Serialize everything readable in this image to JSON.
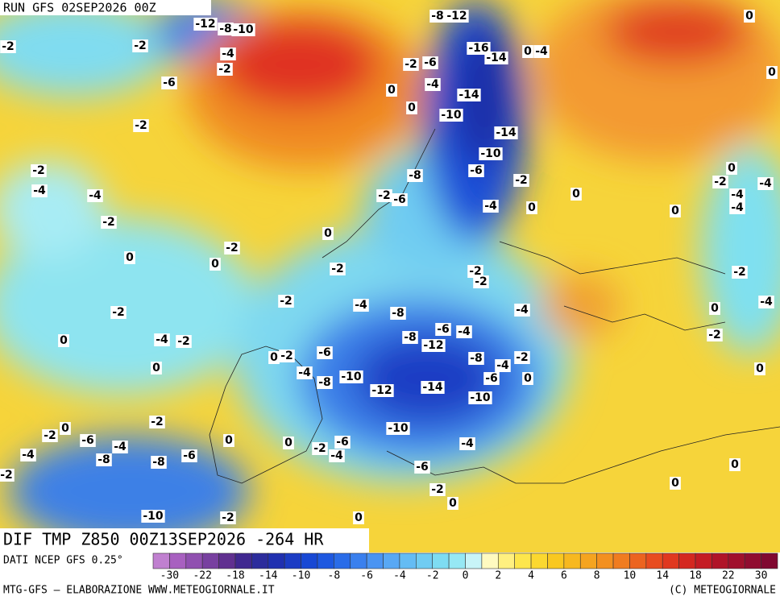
{
  "header": {
    "run": "RUN GFS 02SEP2026 00Z"
  },
  "title": "DIF TMP Z850 00Z13SEP2026 -264 HR",
  "source": "DATI NCEP GFS 0.25°",
  "credit_left": "MTG-GFS — ELABORAZIONE WWW.METEOGIORNALE.IT",
  "credit_right": "(C) METEOGIORNALE",
  "colorbar": {
    "colors": [
      "#c080d0",
      "#a860c0",
      "#9050b0",
      "#7840a0",
      "#603090",
      "#402890",
      "#2c2c9c",
      "#2030b0",
      "#1c3cc4",
      "#1848d4",
      "#1e58e0",
      "#2a6ce8",
      "#3a80ee",
      "#4a94f2",
      "#58a8f4",
      "#64bcf4",
      "#70ccf2",
      "#7edcf2",
      "#96e8f4",
      "#c8f4f8",
      "#fffac0",
      "#fff080",
      "#fde64c",
      "#fbd830",
      "#f9c820",
      "#f7b820",
      "#f5a420",
      "#f39020",
      "#f07c20",
      "#ec6420",
      "#e84c20",
      "#e03820",
      "#d42820",
      "#c41c24",
      "#b01428",
      "#a0102c",
      "#900c30",
      "#800830"
    ],
    "ticks": [
      -30,
      -22,
      -18,
      -14,
      -10,
      -8,
      -6,
      -4,
      -2,
      0,
      2,
      4,
      6,
      8,
      10,
      14,
      18,
      22,
      30
    ]
  },
  "map": {
    "labels": [
      "-12",
      "-8",
      "-10",
      "-8",
      "-12",
      "0",
      "-2",
      "-2",
      "-4",
      "-2",
      "-16",
      "-14",
      "0",
      "-4",
      "-2",
      "-6",
      "0",
      "-6",
      "-4",
      "0",
      "-14",
      "0",
      "-10",
      "-2",
      "-14",
      "-10",
      "-6",
      "-2",
      "-8",
      "-2",
      "0",
      "-2",
      "-4",
      "-4",
      "-2",
      "-6",
      "0",
      "-4",
      "-4",
      "0",
      "-4",
      "0",
      "-2",
      "-4",
      "0",
      "-2",
      "0",
      "0",
      "-2",
      "-2",
      "-2",
      "-2",
      "-2",
      "-4",
      "-4",
      "-2",
      "-8",
      "-4",
      "0",
      "-6",
      "-4",
      "-8",
      "0",
      "-4",
      "-2",
      "-2",
      "-12",
      "-6",
      "0",
      "-2",
      "-8",
      "-2",
      "-4",
      "0",
      "-4",
      "-8",
      "-10",
      "-6",
      "0",
      "0",
      "-12",
      "-14",
      "-10",
      "-2",
      "0",
      "-10",
      "-2",
      "-6",
      "-4",
      "0",
      "0",
      "-2",
      "-6",
      "-4",
      "-4",
      "-4",
      "-8",
      "-6",
      "-8",
      "0",
      "-6",
      "-2",
      "0",
      "-2",
      "0",
      "-10",
      "-2",
      "0"
    ]
  }
}
